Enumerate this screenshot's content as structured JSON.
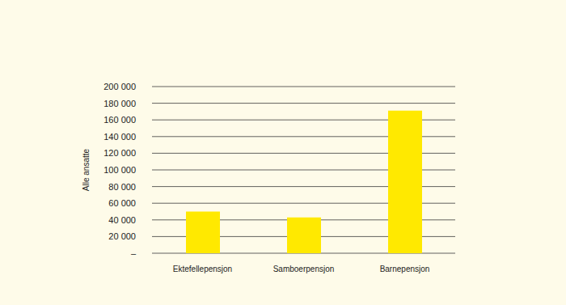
{
  "chart_data": {
    "type": "bar",
    "ylabel": "Alle ansatte",
    "categories": [
      "Ektefellepensjon",
      "Samboerpensjon",
      "Barnepensjon"
    ],
    "values": [
      50000,
      43000,
      171000
    ],
    "color": "#ffe900",
    "ylim": [
      0,
      200000
    ],
    "yticks": [
      {
        "value": 0,
        "label": "–"
      },
      {
        "value": 20000,
        "label": "20 000"
      },
      {
        "value": 40000,
        "label": "40 000"
      },
      {
        "value": 60000,
        "label": "60 000"
      },
      {
        "value": 80000,
        "label": "80 000"
      },
      {
        "value": 100000,
        "label": "100 000"
      },
      {
        "value": 120000,
        "label": "120 000"
      },
      {
        "value": 140000,
        "label": "140 000"
      },
      {
        "value": 160000,
        "label": "160 000"
      },
      {
        "value": 180000,
        "label": "180 000"
      },
      {
        "value": 200000,
        "label": "200 000"
      }
    ],
    "grid": true
  }
}
